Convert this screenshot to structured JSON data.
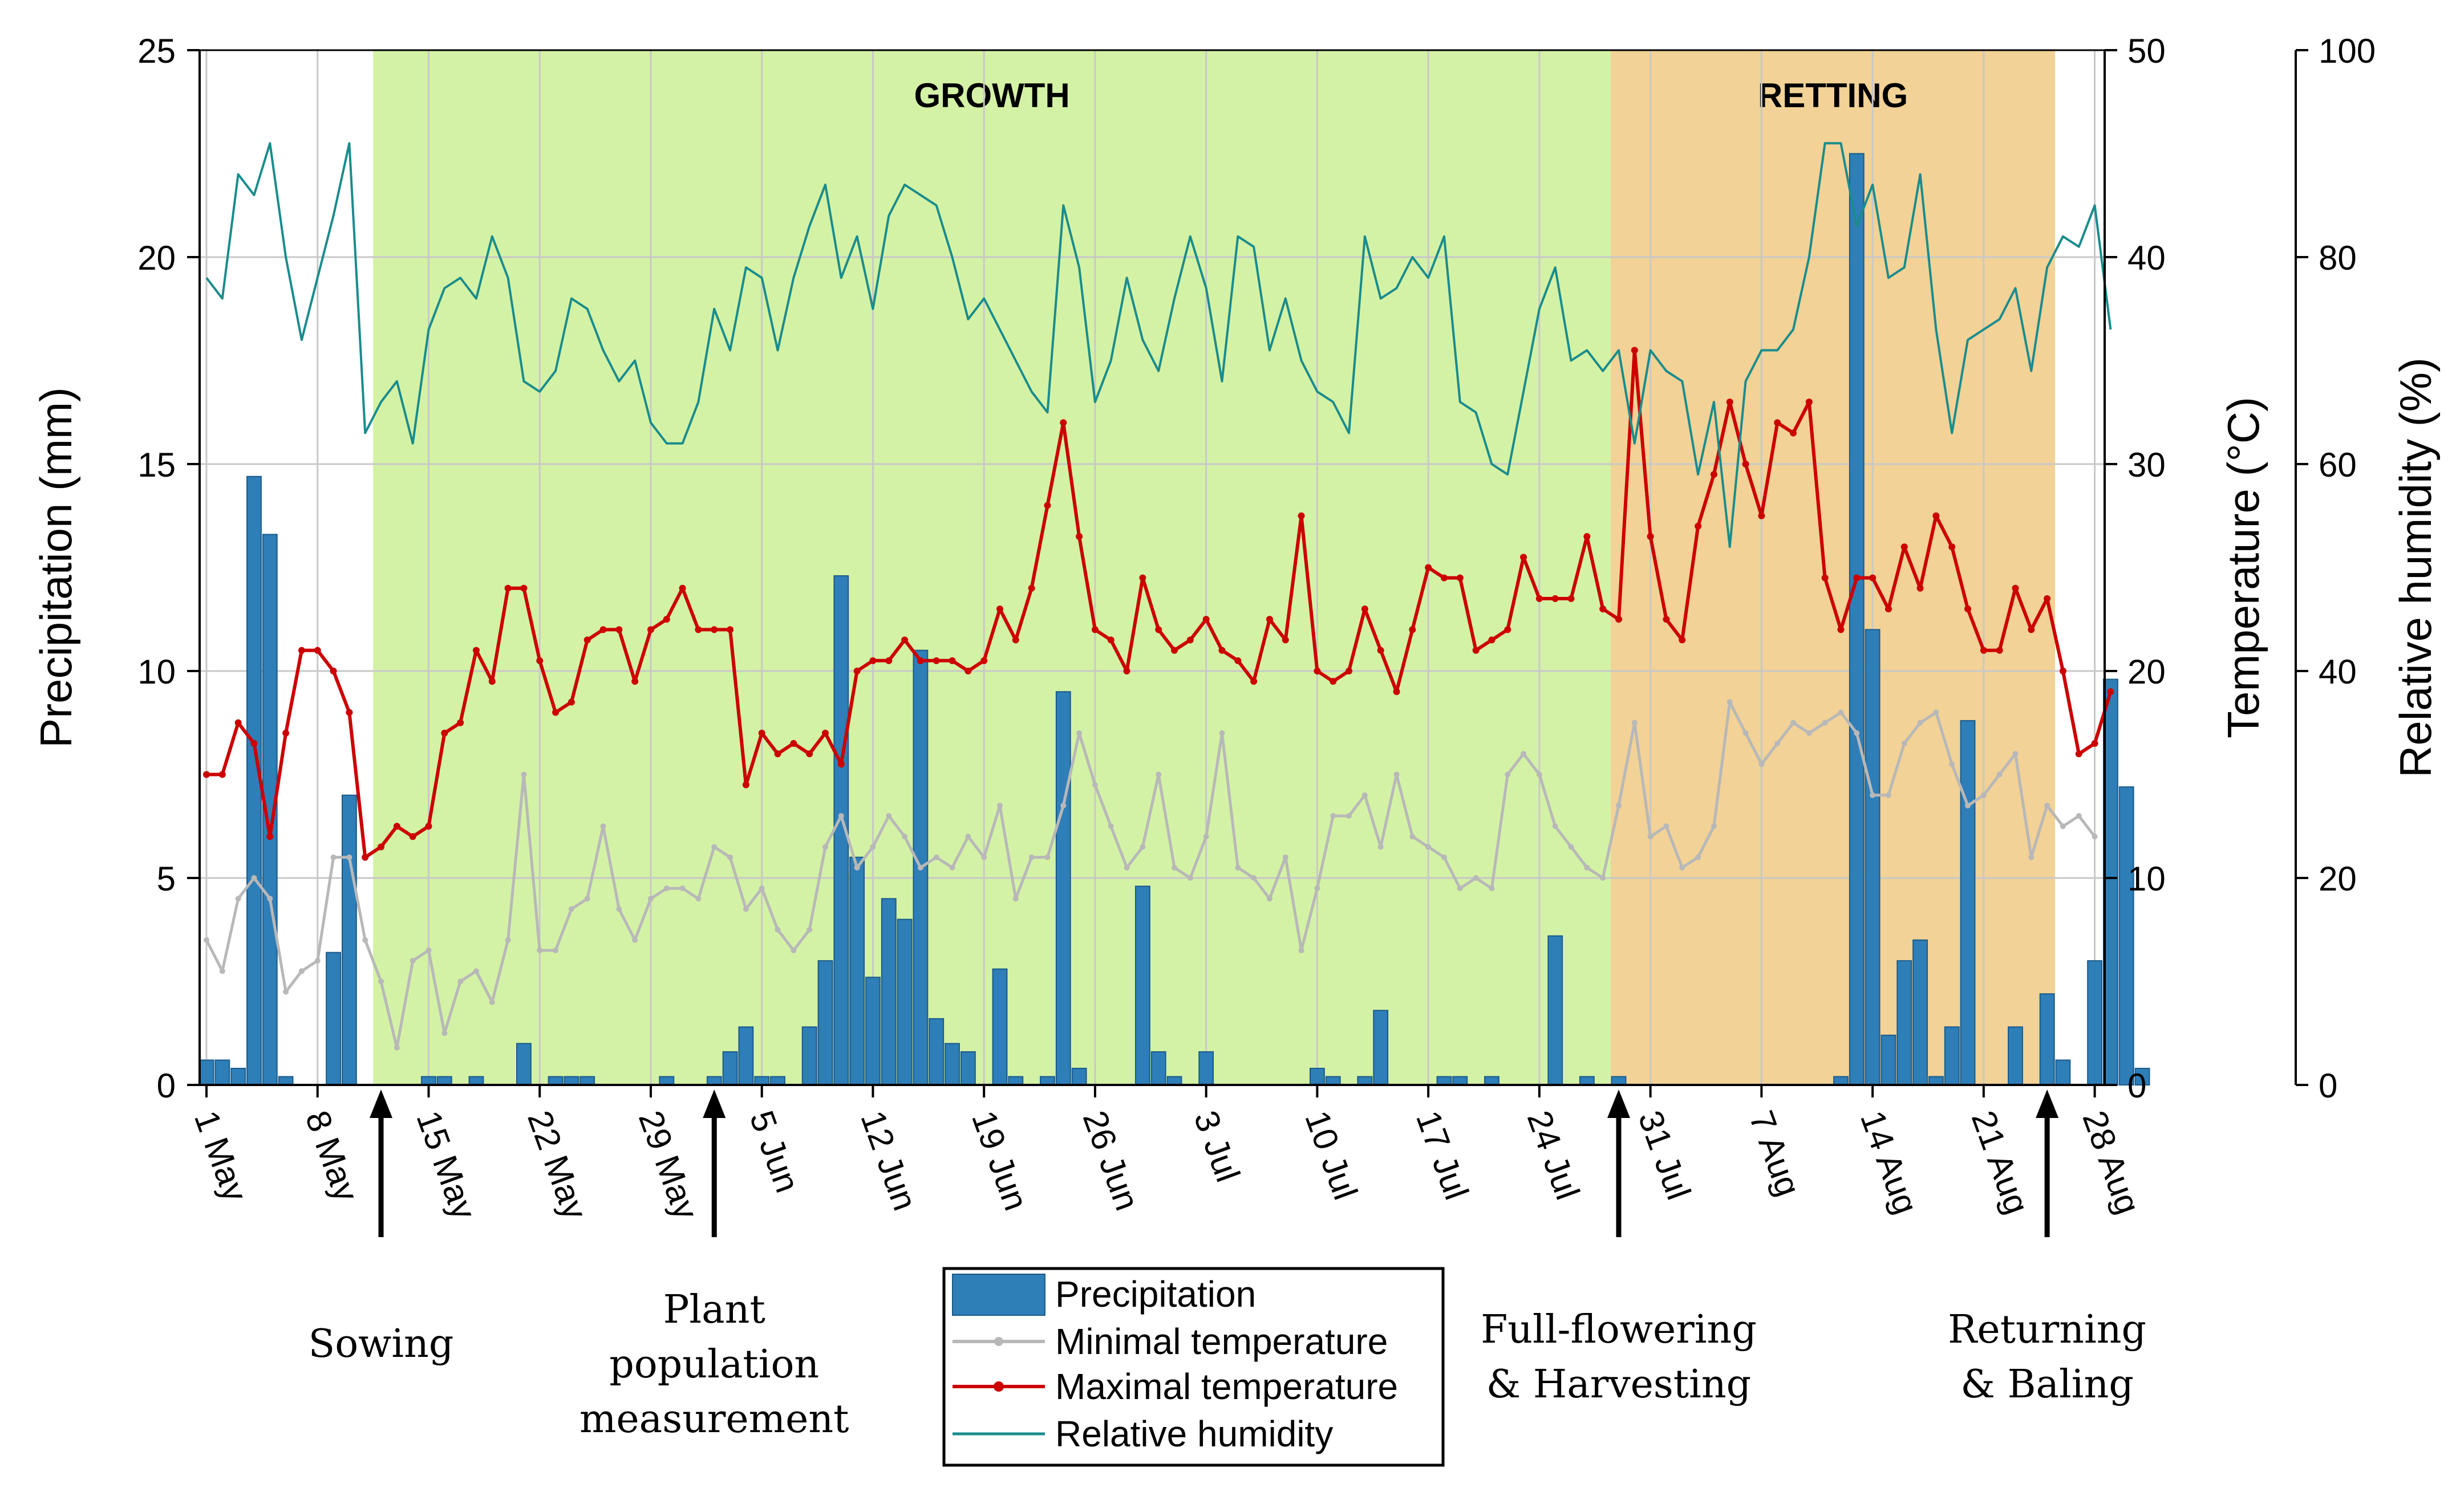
{
  "chart_data": {
    "type": "bar+line",
    "x_start": "2021-05-01",
    "x_ticks": [
      "1 May",
      "8 May",
      "15 May",
      "22 May",
      "29 May",
      "5 Jun",
      "12 Jun",
      "19 Jun",
      "26 Jun",
      "3 Jul",
      "10 Jul",
      "17 Jul",
      "24 Jul",
      "31 Jul",
      "7 Aug",
      "14 Aug",
      "21 Aug",
      "28 Aug"
    ],
    "axes": {
      "left": {
        "label": "Precipitation (mm)",
        "ylim": [
          0,
          25
        ],
        "ticks": [
          "0",
          "5",
          "10",
          "15",
          "20",
          "25"
        ]
      },
      "right1": {
        "label": "Temperature (°C)",
        "ylim": [
          0,
          50
        ],
        "ticks": [
          "0",
          "10",
          "20",
          "30",
          "40",
          "50"
        ]
      },
      "right2": {
        "label": "Relative humidity (%)",
        "ylim": [
          0,
          100
        ],
        "ticks": [
          "0",
          "20",
          "40",
          "60",
          "80",
          "100"
        ]
      }
    },
    "phases": [
      {
        "label": "GROWTH",
        "start_day": 10.5,
        "end_day": 88.5,
        "color": "#d4f2a5"
      },
      {
        "label": "RETTING",
        "start_day": 88.5,
        "end_day": 116.5,
        "color": "#f2d296"
      }
    ],
    "events": [
      {
        "label_lines": [
          "Sowing"
        ],
        "day": 11
      },
      {
        "label_lines": [
          "Plant",
          "population",
          "measurement"
        ],
        "day": 32
      },
      {
        "label_lines": [
          "Full-flowering",
          "& Harvesting"
        ],
        "day": 89
      },
      {
        "label_lines": [
          "Returning",
          "& Baling"
        ],
        "day": 116
      }
    ],
    "series": [
      {
        "name": "Precipitation",
        "type": "bar",
        "axis": "left",
        "color": "#2e7eb8",
        "values": [
          0.6,
          0.6,
          0.4,
          14.7,
          13.3,
          0.2,
          0,
          0,
          3.2,
          7.0,
          0,
          0,
          0,
          0,
          0.2,
          0.2,
          0,
          0.2,
          0,
          0,
          1.0,
          0,
          0.2,
          0.2,
          0.2,
          0,
          0,
          0,
          0,
          0.2,
          0,
          0,
          0.2,
          0.8,
          1.4,
          0.2,
          0.2,
          0,
          1.4,
          3.0,
          12.3,
          5.5,
          2.6,
          4.5,
          4.0,
          10.5,
          1.6,
          1.0,
          0.8,
          0,
          2.8,
          0.2,
          0,
          0.2,
          9.5,
          0.4,
          0,
          0,
          0,
          4.8,
          0.8,
          0.2,
          0,
          0.8,
          0,
          0,
          0,
          0,
          0,
          0,
          0.4,
          0.2,
          0,
          0.2,
          1.8,
          0,
          0,
          0,
          0.2,
          0.2,
          0,
          0.2,
          0,
          0,
          0,
          3.6,
          0,
          0.2,
          0,
          0.2,
          0,
          0,
          0,
          0,
          0,
          0,
          0,
          0,
          0,
          0,
          0,
          0,
          0,
          0.2,
          22.5,
          11.0,
          1.2,
          3.0,
          3.5,
          0.2,
          1.4,
          8.8,
          0,
          0,
          1.4,
          0,
          2.2,
          0.6,
          0,
          3.0,
          9.8,
          7.2,
          0.4,
          0
        ]
      },
      {
        "name": "Minimal temperature",
        "type": "line",
        "axis": "right1",
        "color": "#b8b8b8",
        "values": [
          7.0,
          5.5,
          9.0,
          10.0,
          9.0,
          4.5,
          5.5,
          6.0,
          11.0,
          11.0,
          7.0,
          5.0,
          1.8,
          6.0,
          6.5,
          2.5,
          5.0,
          5.5,
          4.0,
          7.0,
          15.0,
          6.5,
          6.5,
          8.5,
          9.0,
          12.5,
          8.5,
          7.0,
          9.0,
          9.5,
          9.5,
          9.0,
          11.5,
          11.0,
          8.5,
          9.5,
          7.5,
          6.5,
          7.5,
          11.5,
          13.0,
          10.5,
          11.5,
          13.0,
          12.0,
          10.5,
          11.0,
          10.5,
          12.0,
          11.0,
          13.5,
          9.0,
          11.0,
          11.0,
          13.5,
          17.0,
          14.5,
          12.5,
          10.5,
          11.5,
          15.0,
          10.5,
          10.0,
          12.0,
          17.0,
          10.5,
          10.0,
          9.0,
          11.0,
          6.5,
          9.5,
          13.0,
          13.0,
          14.0,
          11.5,
          15.0,
          12.0,
          11.5,
          11.0,
          9.5,
          10.0,
          9.5,
          15.0,
          16.0,
          15.0,
          12.5,
          11.5,
          10.5,
          10.0,
          13.5,
          17.5,
          12.0,
          12.5,
          10.5,
          11.0,
          12.5,
          18.5,
          17.0,
          15.5,
          16.5,
          17.5,
          17.0,
          17.5,
          18.0,
          17.0,
          14.0,
          14.0,
          16.5,
          17.5,
          18.0,
          15.5,
          13.5,
          14.0,
          15.0,
          16.0,
          11.0,
          13.5,
          12.5,
          13.0,
          12.0
        ]
      },
      {
        "name": "Maximal temperature",
        "type": "line",
        "axis": "right1",
        "color": "#cc0000",
        "values": [
          15.0,
          15.0,
          17.5,
          16.5,
          12.0,
          17.0,
          21.0,
          21.0,
          20.0,
          18.0,
          11.0,
          11.5,
          12.5,
          12.0,
          12.5,
          17.0,
          17.5,
          21.0,
          19.5,
          24.0,
          24.0,
          20.5,
          18.0,
          18.5,
          21.5,
          22.0,
          22.0,
          19.5,
          22.0,
          22.5,
          24.0,
          22.0,
          22.0,
          22.0,
          14.5,
          17.0,
          16.0,
          16.5,
          16.0,
          17.0,
          15.5,
          20.0,
          20.5,
          20.5,
          21.5,
          20.5,
          20.5,
          20.5,
          20.0,
          20.5,
          23.0,
          21.5,
          24.0,
          28.0,
          32.0,
          26.5,
          22.0,
          21.5,
          20.0,
          24.5,
          22.0,
          21.0,
          21.5,
          22.5,
          21.0,
          20.5,
          19.5,
          22.5,
          21.5,
          27.5,
          20.0,
          19.5,
          20.0,
          23.0,
          21.0,
          19.0,
          22.0,
          25.0,
          24.5,
          24.5,
          21.0,
          21.5,
          22.0,
          25.5,
          23.5,
          23.5,
          23.5,
          26.5,
          23.0,
          22.5,
          35.5,
          26.5,
          22.5,
          21.5,
          27.0,
          29.5,
          33.0,
          30.0,
          27.5,
          32.0,
          31.5,
          33.0,
          24.5,
          22.0,
          24.5,
          24.5,
          23.0,
          26.0,
          24.0,
          27.5,
          26.0,
          23.0,
          21.0,
          21.0,
          24.0,
          22.0,
          23.5,
          20.0,
          16.0,
          16.5,
          19.0
        ]
      },
      {
        "name": "Relative humidity",
        "type": "line",
        "axis": "right2",
        "color": "#1a8c8c",
        "values": [
          78,
          76,
          88,
          86,
          91,
          80,
          72,
          78,
          84,
          91,
          63,
          66,
          68,
          62,
          73,
          77,
          78,
          76,
          82,
          78,
          68,
          67,
          69,
          76,
          75,
          71,
          68,
          70,
          64,
          62,
          62,
          66,
          75,
          71,
          79,
          78,
          71,
          78,
          83,
          87,
          78,
          82,
          75,
          84,
          87,
          86,
          85,
          80,
          74,
          76,
          73,
          70,
          67,
          65,
          85,
          79,
          66,
          70,
          78,
          72,
          69,
          76,
          82,
          77,
          68,
          82,
          81,
          71,
          76,
          70,
          67,
          66,
          63,
          82,
          76,
          77,
          80,
          78,
          82,
          66,
          65,
          60,
          59,
          67,
          75,
          79,
          70,
          71,
          69,
          71,
          62,
          71,
          69,
          68,
          59,
          66,
          52,
          68,
          71,
          71,
          73,
          80,
          91,
          91,
          83,
          87,
          78,
          79,
          88,
          73,
          63,
          72,
          73,
          74,
          77,
          69,
          79,
          82,
          81,
          85,
          73
        ]
      }
    ]
  }
}
